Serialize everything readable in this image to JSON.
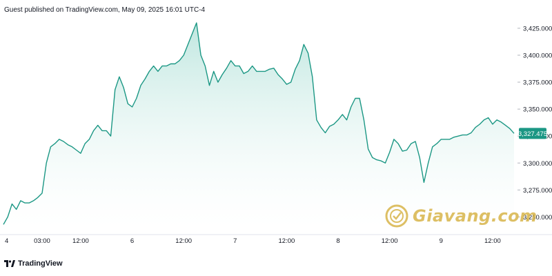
{
  "header": {
    "text": "Guest published on TradingView.com, May 09, 2025 16:01 UTC-4"
  },
  "footer": {
    "brand": "TradingView"
  },
  "watermark": {
    "text": "Giavang.com"
  },
  "colors": {
    "line": "#1b9784",
    "fill_top": "#b8e4dc",
    "fill_bottom": "#ffffff",
    "price_label_bg": "#1b9784",
    "axis_text": "#131722"
  },
  "chart_data": {
    "type": "area",
    "ylim": [
      3240,
      3432
    ],
    "y_ticks": [
      {
        "value": 3250,
        "label": "3,250.000"
      },
      {
        "value": 3275,
        "label": "3,275.000"
      },
      {
        "value": 3300,
        "label": "3,300.000"
      },
      {
        "value": 3325,
        "label": "3,325.000"
      },
      {
        "value": 3350,
        "label": "3,350.000"
      },
      {
        "value": 3375,
        "label": "3,375.000"
      },
      {
        "value": 3400,
        "label": "3,400.000"
      },
      {
        "value": 3425,
        "label": "3,425.000"
      }
    ],
    "x_range": [
      0,
      119
    ],
    "x_ticks": [
      {
        "x": 0,
        "label": "4"
      },
      {
        "x": 9,
        "label": "03:00"
      },
      {
        "x": 18,
        "label": "12:00"
      },
      {
        "x": 30,
        "label": "6"
      },
      {
        "x": 42,
        "label": "12:00"
      },
      {
        "x": 54,
        "label": "7"
      },
      {
        "x": 66,
        "label": "12:00"
      },
      {
        "x": 78,
        "label": "8"
      },
      {
        "x": 90,
        "label": "12:00"
      },
      {
        "x": 102,
        "label": "9"
      },
      {
        "x": 114,
        "label": "12:00"
      }
    ],
    "series": [
      {
        "values": [
          3243,
          3250,
          3262,
          3257,
          3265,
          3263,
          3263,
          3265,
          3268,
          3272,
          3300,
          3315,
          3318,
          3322,
          3320,
          3317,
          3315,
          3312,
          3309,
          3318,
          3322,
          3330,
          3335,
          3330,
          3330,
          3325,
          3368,
          3380,
          3370,
          3355,
          3352,
          3360,
          3372,
          3378,
          3385,
          3390,
          3385,
          3390,
          3390,
          3392,
          3392,
          3395,
          3400,
          3410,
          3420,
          3430,
          3400,
          3390,
          3372,
          3385,
          3375,
          3382,
          3388,
          3395,
          3390,
          3390,
          3383,
          3385,
          3390,
          3385,
          3385,
          3385,
          3387,
          3388,
          3382,
          3378,
          3373,
          3375,
          3387,
          3395,
          3410,
          3402,
          3380,
          3340,
          3333,
          3328,
          3334,
          3336,
          3340,
          3345,
          3340,
          3352,
          3360,
          3360,
          3340,
          3313,
          3305,
          3303,
          3302,
          3300,
          3310,
          3322,
          3318,
          3311,
          3312,
          3318,
          3320,
          3305,
          3282,
          3300,
          3315,
          3318,
          3322,
          3322,
          3322,
          3324,
          3325,
          3326,
          3326,
          3328,
          3333,
          3336,
          3340,
          3342,
          3336,
          3340,
          3338,
          3335,
          3332,
          3327.475
        ]
      }
    ],
    "last_price": 3327.475,
    "last_price_label": "3,327.475"
  }
}
